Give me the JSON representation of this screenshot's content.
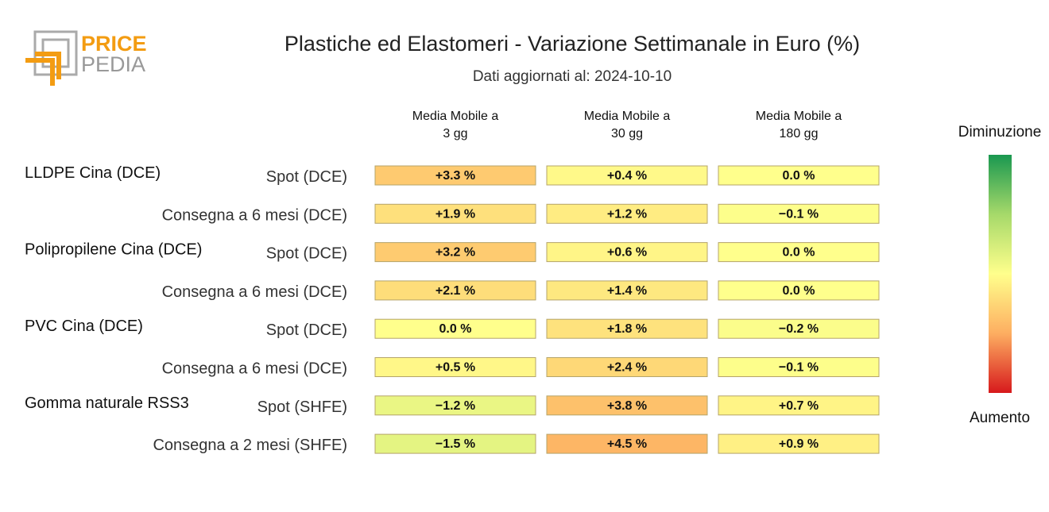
{
  "brand": {
    "line1": "PRICE",
    "line2": "PEDIA",
    "accent": "#f39c12",
    "grey": "#999999"
  },
  "header": {
    "title": "Plastiche ed Elastomeri - Variazione Settimanale in Euro (%)",
    "subtitle": "Dati aggiornati al: 2024-10-10"
  },
  "chart_data": {
    "type": "heatmap",
    "title": "Plastiche ed Elastomeri - Variazione Settimanale in Euro (%)",
    "columns": [
      {
        "line1": "Media Mobile a",
        "line2": "3 gg"
      },
      {
        "line1": "Media Mobile a",
        "line2": "30 gg"
      },
      {
        "line1": "Media Mobile a",
        "line2": "180 gg"
      }
    ],
    "groups": [
      {
        "name": "LLDPE Cina (DCE)",
        "rows": [
          {
            "label": "Spot (DCE)",
            "values": [
              3.3,
              0.4,
              0.0
            ],
            "texts": [
              "+3.3 %",
              "+0.4 %",
              "0.0 %"
            ]
          },
          {
            "label": "Consegna a 6 mesi (DCE)",
            "values": [
              1.9,
              1.2,
              -0.1
            ],
            "texts": [
              "+1.9 %",
              "+1.2 %",
              "−0.1 %"
            ]
          }
        ]
      },
      {
        "name": "Polipropilene Cina (DCE)",
        "rows": [
          {
            "label": "Spot (DCE)",
            "values": [
              3.2,
              0.6,
              0.0
            ],
            "texts": [
              "+3.2 %",
              "+0.6 %",
              "0.0 %"
            ]
          },
          {
            "label": "Consegna a 6 mesi (DCE)",
            "values": [
              2.1,
              1.4,
              0.0
            ],
            "texts": [
              "+2.1 %",
              "+1.4 %",
              "0.0 %"
            ]
          }
        ]
      },
      {
        "name": "PVC Cina (DCE)",
        "rows": [
          {
            "label": "Spot (DCE)",
            "values": [
              0.0,
              1.8,
              -0.2
            ],
            "texts": [
              "0.0 %",
              "+1.8 %",
              "−0.2 %"
            ]
          },
          {
            "label": "Consegna a 6 mesi (DCE)",
            "values": [
              0.5,
              2.4,
              -0.1
            ],
            "texts": [
              "+0.5 %",
              "+2.4 %",
              "−0.1 %"
            ]
          }
        ]
      },
      {
        "name": "Gomma naturale RSS3",
        "rows": [
          {
            "label": "Spot (SHFE)",
            "values": [
              -1.2,
              3.8,
              0.7
            ],
            "texts": [
              "−1.2 %",
              "+3.8 %",
              "+0.7 %"
            ]
          },
          {
            "label": "Consegna a 2 mesi (SHFE)",
            "values": [
              -1.5,
              4.5,
              0.9
            ],
            "texts": [
              "−1.5 %",
              "+4.5 %",
              "+0.9 %"
            ]
          }
        ]
      }
    ],
    "color_scale": {
      "min": -10,
      "max": 10,
      "stops": [
        "#1a9850",
        "#a6d96a",
        "#ffff8c",
        "#fdae61",
        "#d7191c"
      ]
    },
    "legend": {
      "top_label": "Diminuzione",
      "bottom_label": "Aumento",
      "placement": "right"
    }
  }
}
